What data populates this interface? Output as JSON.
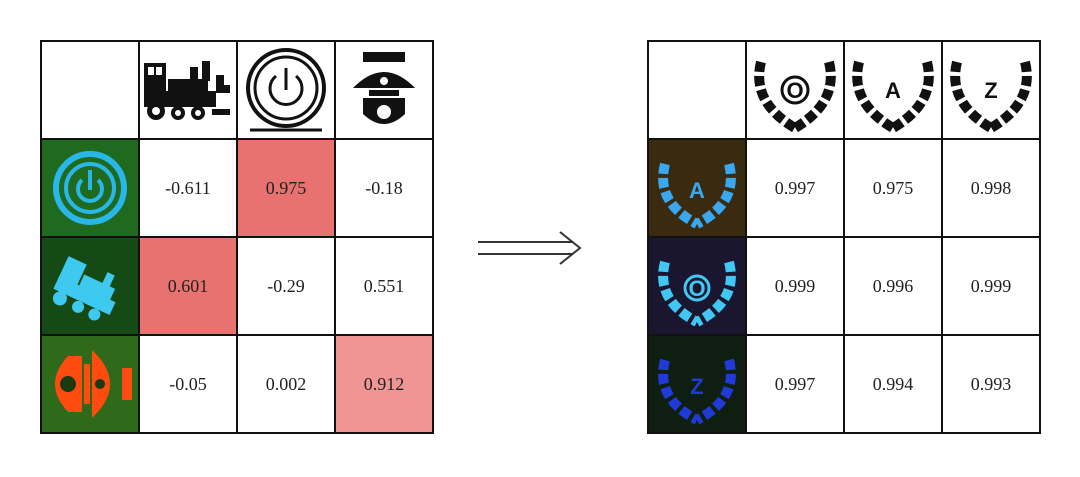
{
  "left_table": {
    "rows": [
      {
        "row_icon": "power-icon",
        "values": [
          "-0.611",
          "0.975",
          "-0.18"
        ]
      },
      {
        "row_icon": "train-icon",
        "values": [
          "0.601",
          "-0.29",
          "0.551"
        ]
      },
      {
        "row_icon": "dome-camera-icon",
        "values": [
          "-0.05",
          "0.002",
          "0.912"
        ]
      }
    ],
    "columns": [
      "train-icon",
      "power-icon",
      "dome-camera-icon"
    ],
    "highlight": {
      "dark": "#e87270",
      "light": "#ef9593"
    }
  },
  "right_table": {
    "columns": [
      {
        "icon": "wreath-icon",
        "letter": "O"
      },
      {
        "icon": "wreath-icon",
        "letter": "A"
      },
      {
        "icon": "wreath-icon",
        "letter": "Z"
      }
    ],
    "rows": [
      {
        "row_icon": "wreath-icon",
        "letter": "A",
        "values": [
          "0.997",
          "0.975",
          "0.998"
        ]
      },
      {
        "row_icon": "wreath-icon",
        "letter": "O",
        "values": [
          "0.999",
          "0.996",
          "0.999"
        ]
      },
      {
        "row_icon": "wreath-icon",
        "letter": "Z",
        "values": [
          "0.997",
          "0.994",
          "0.993"
        ]
      }
    ]
  },
  "arrow_icon": "double-arrow-right-icon"
}
